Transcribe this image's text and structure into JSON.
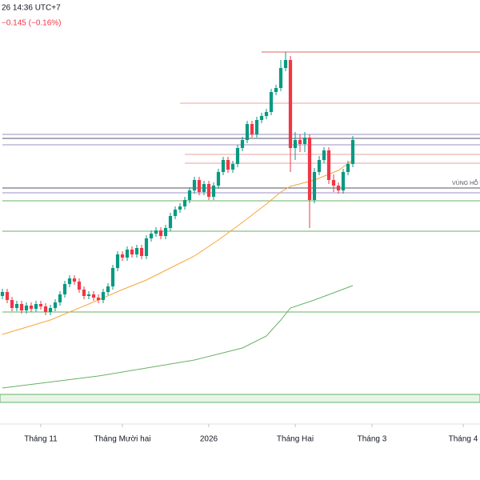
{
  "header": {
    "time": "26 14:36 UTC+7",
    "change": "−0.145 (−0.16%)"
  },
  "chart_data": {
    "type": "candlestick",
    "xlim": [
      -0.5,
      99.5
    ],
    "ylim": [
      0,
      530
    ],
    "xticks": [
      {
        "value": 8,
        "label": "Tháng 11"
      },
      {
        "value": 25,
        "label": "Tháng Mười hai"
      },
      {
        "value": 43,
        "label": "2026"
      },
      {
        "value": 61,
        "label": "Tháng Hai"
      },
      {
        "value": 77,
        "label": "Tháng 3"
      },
      {
        "value": 96,
        "label": "Tháng 4"
      }
    ],
    "up_color": "#089981",
    "down_color": "#f23645",
    "x": [
      0,
      1,
      2,
      3,
      4,
      5,
      6,
      7,
      8,
      9,
      10,
      11,
      12,
      13,
      14,
      15,
      16,
      17,
      18,
      19,
      20,
      21,
      22,
      23,
      24,
      25,
      26,
      27,
      28,
      29,
      30,
      31,
      32,
      33,
      34,
      35,
      36,
      37,
      38,
      39,
      40,
      41,
      42,
      43,
      44,
      45,
      46,
      47,
      48,
      49,
      50,
      51,
      52,
      53,
      54,
      55,
      56,
      57,
      58,
      59,
      60,
      61,
      62,
      63,
      64,
      65,
      66,
      67,
      68,
      69,
      70,
      71,
      72,
      73
    ],
    "open": [
      160,
      165,
      155,
      145,
      150,
      142,
      148,
      144,
      150,
      147,
      140,
      145,
      152,
      162,
      175,
      182,
      178,
      168,
      160,
      162,
      158,
      155,
      165,
      172,
      195,
      212,
      208,
      218,
      212,
      220,
      210,
      232,
      238,
      242,
      235,
      245,
      260,
      268,
      272,
      280,
      292,
      305,
      290,
      300,
      284,
      298,
      315,
      330,
      318,
      325,
      345,
      355,
      375,
      362,
      380,
      385,
      390,
      415,
      420,
      445,
      455,
      345,
      355,
      350,
      358,
      280,
      315,
      330,
      342,
      305,
      298,
      292,
      315,
      325
    ],
    "high": [
      169,
      169,
      159,
      154,
      154,
      152,
      152,
      154,
      154,
      151,
      149,
      156,
      166,
      179,
      186,
      186,
      182,
      172,
      166,
      166,
      162,
      169,
      176,
      199,
      216,
      216,
      222,
      222,
      224,
      224,
      236,
      242,
      246,
      246,
      249,
      264,
      272,
      276,
      284,
      296,
      309,
      309,
      304,
      304,
      302,
      319,
      334,
      334,
      329,
      349,
      359,
      379,
      379,
      384,
      389,
      394,
      419,
      424,
      455,
      465,
      460,
      365,
      362,
      365,
      362,
      320,
      335,
      346,
      346,
      312,
      302,
      319,
      329,
      360
    ],
    "low": [
      156,
      151,
      141,
      141,
      138,
      138,
      140,
      140,
      143,
      136,
      136,
      141,
      148,
      158,
      171,
      174,
      164,
      156,
      156,
      154,
      151,
      151,
      161,
      168,
      191,
      204,
      204,
      208,
      208,
      206,
      206,
      228,
      234,
      231,
      231,
      241,
      256,
      264,
      268,
      276,
      288,
      286,
      286,
      280,
      280,
      294,
      311,
      314,
      314,
      321,
      341,
      351,
      358,
      358,
      376,
      381,
      386,
      411,
      416,
      441,
      315,
      330,
      340,
      340,
      245,
      276,
      311,
      326,
      300,
      290,
      288,
      288,
      311,
      321
    ],
    "close": [
      165,
      155,
      145,
      150,
      142,
      148,
      144,
      150,
      147,
      140,
      145,
      152,
      162,
      175,
      182,
      178,
      168,
      160,
      162,
      158,
      155,
      165,
      172,
      195,
      212,
      208,
      218,
      212,
      220,
      210,
      232,
      238,
      242,
      235,
      245,
      260,
      268,
      272,
      280,
      292,
      305,
      290,
      300,
      284,
      298,
      315,
      330,
      318,
      325,
      345,
      355,
      375,
      362,
      380,
      385,
      390,
      415,
      420,
      445,
      455,
      345,
      355,
      350,
      358,
      280,
      315,
      330,
      342,
      305,
      298,
      292,
      315,
      325,
      355
    ],
    "lines": [
      {
        "color": "#f7a53a",
        "x": [
          0,
          10,
          20,
          25,
          30,
          35,
          40,
          45,
          50,
          55,
          58,
          60,
          65,
          70,
          73
        ],
        "values": [
          112,
          130,
          155,
          168,
          180,
          195,
          210,
          230,
          252,
          275,
          290,
          297,
          305,
          317,
          330
        ]
      },
      {
        "color": "#66b266",
        "x": [
          0,
          20,
          40,
          50,
          55,
          58,
          60,
          65,
          73
        ],
        "values": [
          45,
          60,
          80,
          95,
          110,
          130,
          145,
          155,
          173
        ]
      }
    ],
    "levels": [
      {
        "value": 465,
        "color": "#e06666",
        "start": 54
      },
      {
        "value": 401,
        "color": "#f0a0a0",
        "start": 37
      },
      {
        "value": 362,
        "color": "#9c8fc4",
        "start": 0
      },
      {
        "value": 357,
        "color": "#555566",
        "start": 0
      },
      {
        "value": 349,
        "color": "#9c8fc4",
        "start": 0
      },
      {
        "value": 337,
        "color": "#e8a0a0",
        "start": 38
      },
      {
        "value": 326,
        "color": "#e8a0a0",
        "start": 38
      },
      {
        "value": 295,
        "color": "#555566",
        "start": 0
      },
      {
        "value": 289,
        "color": "#9c8fc4",
        "start": 0
      },
      {
        "value": 279,
        "color": "#66b266",
        "start": 0
      },
      {
        "value": 241,
        "color": "#66b266",
        "start": 0
      },
      {
        "value": 140,
        "color": "#66b266",
        "start": 0
      }
    ],
    "zone": {
      "values": [
        27,
        37
      ],
      "color": "#66b266"
    },
    "zone_label": "VÙNG HỖ T"
  }
}
